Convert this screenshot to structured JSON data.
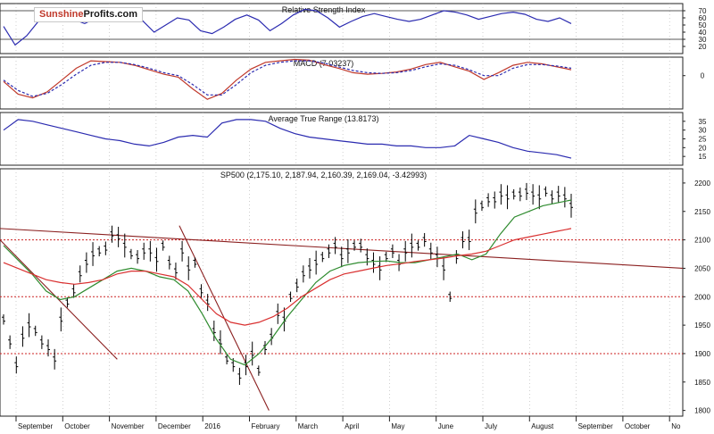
{
  "chart_data": [
    {
      "type": "line",
      "title": "Relative Strength Index",
      "ylim": [
        10,
        80
      ],
      "y_ticks": [
        20,
        30,
        40,
        50,
        60,
        70
      ],
      "reference_levels": [
        30,
        70
      ],
      "series": [
        {
          "color": "#2b2bb0",
          "values": [
            48,
            22,
            35,
            55,
            62,
            60,
            58,
            52,
            60,
            64,
            70,
            66,
            56,
            40,
            50,
            60,
            57,
            42,
            38,
            47,
            58,
            64,
            57,
            42,
            52,
            64,
            72,
            70,
            60,
            47,
            55,
            62,
            66,
            62,
            58,
            55,
            58,
            64,
            70,
            68,
            64,
            58,
            62,
            66,
            68,
            65,
            58,
            55,
            60,
            52
          ]
        }
      ]
    },
    {
      "type": "line",
      "title": "MACD (7.03237)",
      "y_ticks": [
        0
      ],
      "ylim": [
        -45,
        25
      ],
      "series": [
        {
          "color": "#c0392b",
          "values": [
            -8,
            -25,
            -30,
            -22,
            -6,
            10,
            20,
            19,
            18,
            14,
            8,
            2,
            -2,
            -18,
            -32,
            -24,
            -6,
            9,
            18,
            20,
            22,
            21,
            15,
            10,
            4,
            2,
            3,
            5,
            9,
            15,
            18,
            12,
            6,
            -5,
            4,
            14,
            18,
            16,
            12,
            8
          ]
        },
        {
          "color": "#2b2bb0",
          "dash": true,
          "values": [
            -6,
            -20,
            -28,
            -24,
            -12,
            2,
            14,
            18,
            18,
            15,
            10,
            4,
            0,
            -12,
            -26,
            -26,
            -12,
            4,
            14,
            18,
            20,
            20,
            17,
            12,
            7,
            4,
            3,
            4,
            7,
            12,
            16,
            14,
            8,
            0,
            0,
            10,
            15,
            15,
            13,
            10
          ]
        }
      ]
    },
    {
      "type": "line",
      "title": "Average True Range (13.8173)",
      "ylim": [
        10,
        40
      ],
      "y_ticks": [
        15,
        20,
        25,
        30,
        35
      ],
      "series": [
        {
          "color": "#2b2bb0",
          "values": [
            30,
            36,
            35,
            33,
            31,
            29,
            27,
            25,
            24,
            22,
            21,
            23,
            26,
            27,
            26,
            34,
            36,
            36,
            35,
            31,
            28,
            26,
            25,
            24,
            23,
            22,
            22,
            21,
            21,
            20,
            20,
            21,
            27,
            25,
            23,
            20,
            18,
            17,
            16,
            14
          ]
        }
      ]
    },
    {
      "type": "line",
      "title": "SP500 (2,175.10, 2,187.94, 2,160.39, 2,169.04, -3.42993)",
      "ylim": [
        1790,
        2225
      ],
      "y_ticks": [
        1800,
        1850,
        1900,
        1950,
        2000,
        2050,
        2100,
        2150,
        2200
      ],
      "x_ticks": [
        "September",
        "October",
        "November",
        "December",
        "2016",
        "February",
        "March",
        "April",
        "May",
        "June",
        "July",
        "August",
        "September",
        "October",
        "No"
      ],
      "reference_levels": [
        1900,
        2000,
        2100
      ],
      "trendlines": [
        {
          "color": "#8b2020",
          "from": [
            0,
            2120
          ],
          "to": [
            198,
            2050
          ]
        },
        {
          "color": "#8b2020",
          "from": [
            0,
            2100
          ],
          "to": [
            34,
            1890
          ]
        },
        {
          "color": "#8b2020",
          "from": [
            52,
            2125
          ],
          "to": [
            78,
            1800
          ]
        }
      ],
      "price_bars": [
        1960,
        1920,
        1880,
        1930,
        1950,
        1940,
        1920,
        1910,
        1890,
        1960,
        1990,
        2010,
        2040,
        2060,
        2075,
        2080,
        2085,
        2110,
        2105,
        2090,
        2075,
        2070,
        2080,
        2080,
        2065,
        2090,
        2060,
        2045,
        2080,
        2050,
        2060,
        2010,
        1990,
        1940,
        1920,
        1890,
        1880,
        1860,
        1880,
        1900,
        1870,
        1910,
        1930,
        1970,
        1960,
        2000,
        2020,
        2040,
        2050,
        2060,
        2070,
        2080,
        2090,
        2070,
        2080,
        2090,
        2090,
        2070,
        2060,
        2050,
        2070,
        2080,
        2060,
        2080,
        2090,
        2090,
        2100,
        2080,
        2070,
        2050,
        2000,
        2070,
        2100,
        2100,
        2150,
        2160,
        2170,
        2170,
        2180,
        2175,
        2180,
        2180,
        2185,
        2180,
        2175,
        2185,
        2175,
        2180,
        2175,
        2160
      ],
      "series": [
        {
          "name": "SP500",
          "color": "#000000",
          "type": "bars"
        },
        {
          "color": "#2e8b2e",
          "values": [
            2090,
            2065,
            2040,
            2010,
            1995,
            2000,
            2015,
            2030,
            2045,
            2050,
            2045,
            2035,
            2030,
            2010,
            1970,
            1925,
            1890,
            1880,
            1900,
            1930,
            1965,
            1995,
            2025,
            2045,
            2055,
            2060,
            2062,
            2063,
            2060,
            2060,
            2065,
            2070,
            2075,
            2065,
            2075,
            2110,
            2140,
            2150,
            2160,
            2165,
            2170
          ]
        },
        {
          "color": "#d93030",
          "values": [
            2060,
            2050,
            2040,
            2030,
            2025,
            2022,
            2025,
            2030,
            2040,
            2045,
            2045,
            2040,
            2035,
            2020,
            1995,
            1970,
            1955,
            1950,
            1955,
            1965,
            1980,
            2000,
            2015,
            2030,
            2040,
            2045,
            2050,
            2055,
            2058,
            2062,
            2065,
            2068,
            2072,
            2075,
            2080,
            2090,
            2100,
            2105,
            2110,
            2115,
            2120
          ]
        }
      ]
    }
  ],
  "logo": {
    "part_a": "Sunshine",
    "part_b": "Profits.com"
  }
}
